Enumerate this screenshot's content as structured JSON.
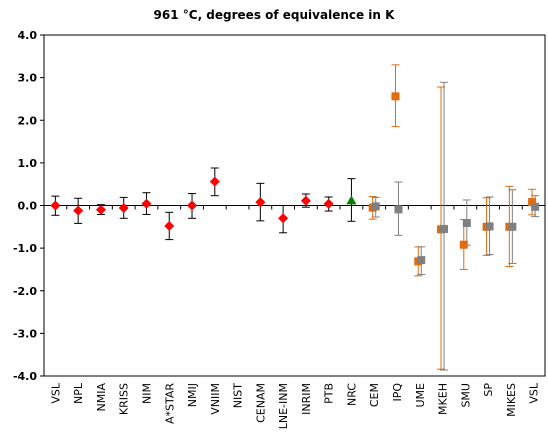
{
  "chart_data": {
    "type": "scatter",
    "title": "961 °C, degrees of equivalence in K",
    "xlabel": "",
    "ylabel": "",
    "ylim": [
      -4,
      4
    ],
    "yticks": [
      "4.0",
      "3.0",
      "2.0",
      "1.0",
      "0.0",
      "-1.0",
      "-2.0",
      "-3.0",
      "-4.0"
    ],
    "categories": [
      "VSL",
      "NPL",
      "NMIA",
      "KRISS",
      "NIM",
      "A*STAR",
      "NMIJ",
      "VNIIM",
      "NIST",
      "CENAM",
      "LNE-INM",
      "INRIM",
      "PTB",
      "NRC",
      "CEM",
      "IPQ",
      "UME",
      "MKEH",
      "SMU",
      "SP",
      "MIKES",
      "VSL"
    ],
    "grid": true,
    "series": [
      {
        "marker": "diamond",
        "color": "#ff0000",
        "errorbar_color": "#000000",
        "points": [
          {
            "category": "VSL",
            "value": 0.0,
            "low": -0.23,
            "high": 0.22
          },
          {
            "category": "NPL",
            "value": -0.12,
            "low": -0.42,
            "high": 0.17
          },
          {
            "category": "NMIA",
            "value": -0.1,
            "low": -0.21,
            "high": 0.02
          },
          {
            "category": "KRISS",
            "value": -0.06,
            "low": -0.3,
            "high": 0.19
          },
          {
            "category": "NIM",
            "value": 0.04,
            "low": -0.21,
            "high": 0.3
          },
          {
            "category": "A*STAR",
            "value": -0.48,
            "low": -0.8,
            "high": -0.16
          },
          {
            "category": "NMIJ",
            "value": 0.0,
            "low": -0.3,
            "high": 0.28
          },
          {
            "category": "VNIIM",
            "value": 0.56,
            "low": 0.23,
            "high": 0.88
          },
          {
            "category": "CENAM",
            "value": 0.08,
            "low": -0.36,
            "high": 0.52
          },
          {
            "category": "LNE-INM",
            "value": -0.3,
            "low": -0.64,
            "high": 0.0
          },
          {
            "category": "INRIM",
            "value": 0.11,
            "low": -0.04,
            "high": 0.27
          },
          {
            "category": "PTB",
            "value": 0.04,
            "low": -0.13,
            "high": 0.2
          }
        ]
      },
      {
        "marker": "triangle",
        "color": "#008000",
        "errorbar_color": "#000000",
        "points": [
          {
            "category": "NRC",
            "value": 0.12,
            "low": -0.37,
            "high": 0.63
          }
        ]
      },
      {
        "marker": "square",
        "color": "#e26b0a",
        "errorbar_color": "#e26b0a",
        "points": [
          {
            "index": 14,
            "category": "CEM",
            "value": -0.05,
            "low": -0.32,
            "high": 0.21
          },
          {
            "index": 15,
            "category": "IPQ",
            "value": 2.56,
            "low": 1.85,
            "high": 3.3
          },
          {
            "index": 16,
            "category": "UME",
            "value": -1.31,
            "low": -1.65,
            "high": -0.97
          },
          {
            "index": 17,
            "category": "MKEH",
            "value": -0.56,
            "low": -3.84,
            "high": 2.78
          },
          {
            "index": 18,
            "category": "SMU",
            "value": -0.92,
            "low": -1.5,
            "high": -0.33
          },
          {
            "index": 19,
            "category": "SP",
            "value": -0.5,
            "low": -1.17,
            "high": 0.18
          },
          {
            "index": 20,
            "category": "MIKES",
            "value": -0.5,
            "low": -1.43,
            "high": 0.45
          },
          {
            "index": 21,
            "category": "VSL",
            "value": 0.08,
            "low": -0.22,
            "high": 0.38
          }
        ]
      },
      {
        "marker": "square",
        "color": "#808080",
        "errorbar_color": "#808080",
        "points": [
          {
            "index": 14,
            "category": "CEM",
            "value": -0.02,
            "low": -0.27,
            "high": 0.19
          },
          {
            "index": 15,
            "category": "IPQ",
            "value": -0.09,
            "low": -0.7,
            "high": 0.55
          },
          {
            "index": 16,
            "category": "UME",
            "value": -1.28,
            "low": -1.62,
            "high": -0.97
          },
          {
            "index": 17,
            "category": "MKEH",
            "value": -0.55,
            "low": -3.86,
            "high": 2.89
          },
          {
            "index": 18,
            "category": "SMU",
            "value": -0.41,
            "low": -0.93,
            "high": 0.13
          },
          {
            "index": 19,
            "category": "SP",
            "value": -0.49,
            "low": -1.15,
            "high": 0.2
          },
          {
            "index": 20,
            "category": "MIKES",
            "value": -0.5,
            "low": -1.36,
            "high": 0.37
          },
          {
            "index": 21,
            "category": "VSL",
            "value": -0.03,
            "low": -0.26,
            "high": 0.23
          }
        ]
      }
    ]
  }
}
